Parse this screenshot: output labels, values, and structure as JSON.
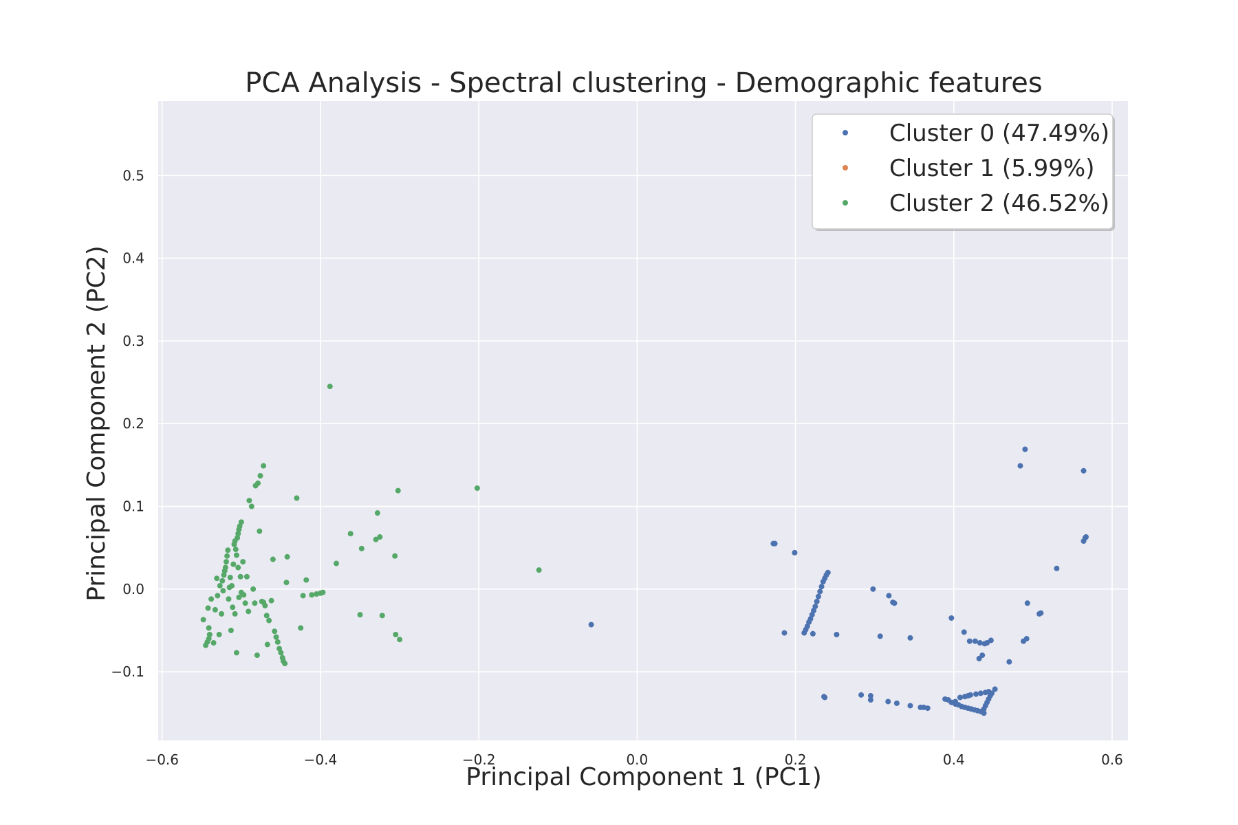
{
  "chart_data": {
    "type": "scatter",
    "title": "PCA Analysis - Spectral clustering - Demographic features",
    "xlabel": "Principal Component 1 (PC1)",
    "ylabel": "Principal Component 2 (PC2)",
    "xlim": [
      -0.605,
      0.62
    ],
    "ylim": [
      -0.183,
      0.59
    ],
    "xticks": [
      -0.6,
      -0.4,
      -0.2,
      0.0,
      0.2,
      0.4,
      0.6
    ],
    "xtick_labels": [
      "−0.6",
      "−0.4",
      "−0.2",
      "0.0",
      "0.2",
      "0.4",
      "0.6"
    ],
    "yticks": [
      -0.1,
      0.0,
      0.1,
      0.2,
      0.3,
      0.4,
      0.5
    ],
    "ytick_labels": [
      "−0.1",
      "0.0",
      "0.1",
      "0.2",
      "0.3",
      "0.4",
      "0.5"
    ],
    "grid": true,
    "legend_position": "top-right",
    "background_color": "#eaeaf2",
    "grid_color": "#ffffff",
    "series": [
      {
        "name": "Cluster 0 (47.49%)",
        "color": "#4c72b0",
        "points": [
          [
            -0.058,
            -0.043
          ],
          [
            0.172,
            0.055
          ],
          [
            0.174,
            0.055
          ],
          [
            0.199,
            0.044
          ],
          [
            0.186,
            -0.053
          ],
          [
            0.211,
            -0.053
          ],
          [
            0.213,
            -0.049
          ],
          [
            0.215,
            -0.045
          ],
          [
            0.217,
            -0.04
          ],
          [
            0.219,
            -0.036
          ],
          [
            0.221,
            -0.031
          ],
          [
            0.223,
            -0.026
          ],
          [
            0.225,
            -0.021
          ],
          [
            0.227,
            -0.015
          ],
          [
            0.229,
            -0.009
          ],
          [
            0.231,
            -0.003
          ],
          [
            0.233,
            0.003
          ],
          [
            0.235,
            0.009
          ],
          [
            0.237,
            0.013
          ],
          [
            0.239,
            0.017
          ],
          [
            0.241,
            0.02
          ],
          [
            0.222,
            -0.054
          ],
          [
            0.252,
            -0.055
          ],
          [
            0.236,
            -0.13
          ],
          [
            0.237,
            -0.131
          ],
          [
            0.283,
            -0.128
          ],
          [
            0.295,
            -0.129
          ],
          [
            0.295,
            -0.134
          ],
          [
            0.298,
            0.0
          ],
          [
            0.307,
            -0.057
          ],
          [
            0.317,
            -0.136
          ],
          [
            0.328,
            -0.138
          ],
          [
            0.318,
            -0.008
          ],
          [
            0.323,
            -0.016
          ],
          [
            0.325,
            -0.017
          ],
          [
            0.345,
            -0.059
          ],
          [
            0.345,
            -0.141
          ],
          [
            0.358,
            -0.143
          ],
          [
            0.362,
            -0.143
          ],
          [
            0.367,
            -0.144
          ],
          [
            0.389,
            -0.133
          ],
          [
            0.393,
            -0.134
          ],
          [
            0.397,
            -0.137
          ],
          [
            0.402,
            -0.136
          ],
          [
            0.408,
            -0.131
          ],
          [
            0.414,
            -0.13
          ],
          [
            0.418,
            -0.129
          ],
          [
            0.421,
            -0.128
          ],
          [
            0.428,
            -0.127
          ],
          [
            0.434,
            -0.126
          ],
          [
            0.44,
            -0.125
          ],
          [
            0.444,
            -0.124
          ],
          [
            0.402,
            -0.139
          ],
          [
            0.406,
            -0.14
          ],
          [
            0.41,
            -0.142
          ],
          [
            0.414,
            -0.143
          ],
          [
            0.418,
            -0.144
          ],
          [
            0.422,
            -0.145
          ],
          [
            0.426,
            -0.146
          ],
          [
            0.43,
            -0.147
          ],
          [
            0.434,
            -0.148
          ],
          [
            0.438,
            -0.15
          ],
          [
            0.438,
            -0.145
          ],
          [
            0.44,
            -0.141
          ],
          [
            0.442,
            -0.137
          ],
          [
            0.444,
            -0.133
          ],
          [
            0.446,
            -0.129
          ],
          [
            0.448,
            -0.126
          ],
          [
            0.452,
            -0.121
          ],
          [
            0.397,
            -0.035
          ],
          [
            0.413,
            -0.052
          ],
          [
            0.42,
            -0.063
          ],
          [
            0.427,
            -0.063
          ],
          [
            0.433,
            -0.065
          ],
          [
            0.439,
            -0.066
          ],
          [
            0.442,
            -0.065
          ],
          [
            0.447,
            -0.062
          ],
          [
            0.432,
            -0.084
          ],
          [
            0.436,
            -0.08
          ],
          [
            0.47,
            -0.088
          ],
          [
            0.488,
            -0.063
          ],
          [
            0.492,
            -0.06
          ],
          [
            0.493,
            -0.017
          ],
          [
            0.508,
            -0.03
          ],
          [
            0.51,
            -0.029
          ],
          [
            0.484,
            0.149
          ],
          [
            0.49,
            0.169
          ],
          [
            0.53,
            0.025
          ],
          [
            0.564,
            0.143
          ],
          [
            0.564,
            0.058
          ],
          [
            0.566,
            0.062
          ],
          [
            0.567,
            0.063
          ]
        ]
      },
      {
        "name": "Cluster 1 (5.99%)",
        "color": "#dd8452",
        "points": []
      },
      {
        "name": "Cluster 2 (46.52%)",
        "color": "#55a868",
        "points": [
          [
            -0.548,
            -0.037
          ],
          [
            -0.545,
            -0.068
          ],
          [
            -0.543,
            -0.064
          ],
          [
            -0.541,
            -0.06
          ],
          [
            -0.54,
            -0.055
          ],
          [
            -0.542,
            -0.023
          ],
          [
            -0.541,
            -0.047
          ],
          [
            -0.538,
            -0.012
          ],
          [
            -0.535,
            -0.065
          ],
          [
            -0.533,
            -0.025
          ],
          [
            -0.531,
            0.013
          ],
          [
            -0.53,
            -0.008
          ],
          [
            -0.528,
            -0.055
          ],
          [
            -0.527,
            0.004
          ],
          [
            -0.525,
            -0.03
          ],
          [
            -0.524,
            0.01
          ],
          [
            -0.523,
            -0.002
          ],
          [
            -0.522,
            0.017
          ],
          [
            -0.521,
            0.022
          ],
          [
            -0.52,
            0.026
          ],
          [
            -0.519,
            0.033
          ],
          [
            -0.518,
            0.04
          ],
          [
            -0.517,
            0.047
          ],
          [
            -0.516,
            -0.012
          ],
          [
            -0.515,
            0.002
          ],
          [
            -0.514,
            0.014
          ],
          [
            -0.513,
            -0.05
          ],
          [
            -0.512,
            0.004
          ],
          [
            -0.511,
            -0.022
          ],
          [
            -0.51,
            0.03
          ],
          [
            -0.509,
            0.054
          ],
          [
            -0.508,
            0.058
          ],
          [
            -0.507,
            0.048
          ],
          [
            -0.506,
            0.041
          ],
          [
            -0.505,
            0.062
          ],
          [
            -0.504,
            0.067
          ],
          [
            -0.503,
            0.072
          ],
          [
            -0.502,
            0.076
          ],
          [
            -0.5,
            0.081
          ],
          [
            -0.508,
            -0.03
          ],
          [
            -0.506,
            -0.077
          ],
          [
            -0.504,
            0.026
          ],
          [
            -0.503,
            -0.01
          ],
          [
            -0.501,
            0.015
          ],
          [
            -0.5,
            -0.004
          ],
          [
            -0.498,
            0.033
          ],
          [
            -0.497,
            -0.007
          ],
          [
            -0.495,
            -0.017
          ],
          [
            -0.493,
            0.015
          ],
          [
            -0.491,
            -0.027
          ],
          [
            -0.49,
            0.107
          ],
          [
            -0.487,
            0.1
          ],
          [
            -0.485,
            0.0
          ],
          [
            -0.483,
            -0.017
          ],
          [
            -0.482,
            0.125
          ],
          [
            -0.48,
            -0.08
          ],
          [
            -0.479,
            0.128
          ],
          [
            -0.477,
            0.07
          ],
          [
            -0.476,
            0.137
          ],
          [
            -0.474,
            -0.015
          ],
          [
            -0.472,
            0.149
          ],
          [
            -0.472,
            -0.016
          ],
          [
            -0.47,
            -0.02
          ],
          [
            -0.468,
            -0.032
          ],
          [
            -0.467,
            -0.067
          ],
          [
            -0.465,
            -0.038
          ],
          [
            -0.462,
            -0.014
          ],
          [
            -0.46,
            0.036
          ],
          [
            -0.458,
            -0.051
          ],
          [
            -0.456,
            -0.058
          ],
          [
            -0.454,
            -0.064
          ],
          [
            -0.452,
            -0.072
          ],
          [
            -0.45,
            -0.077
          ],
          [
            -0.448,
            -0.083
          ],
          [
            -0.447,
            -0.087
          ],
          [
            -0.445,
            -0.09
          ],
          [
            -0.443,
            0.008
          ],
          [
            -0.442,
            0.039
          ],
          [
            -0.43,
            0.11
          ],
          [
            -0.425,
            -0.047
          ],
          [
            -0.422,
            -0.008
          ],
          [
            -0.418,
            0.011
          ],
          [
            -0.411,
            -0.007
          ],
          [
            -0.405,
            -0.006
          ],
          [
            -0.4,
            -0.005
          ],
          [
            -0.397,
            -0.004
          ],
          [
            -0.388,
            0.245
          ],
          [
            -0.38,
            0.031
          ],
          [
            -0.362,
            0.067
          ],
          [
            -0.35,
            -0.031
          ],
          [
            -0.348,
            0.049
          ],
          [
            -0.33,
            0.06
          ],
          [
            -0.328,
            0.092
          ],
          [
            -0.325,
            0.063
          ],
          [
            -0.322,
            -0.032
          ],
          [
            -0.306,
            0.04
          ],
          [
            -0.305,
            -0.055
          ],
          [
            -0.302,
            0.119
          ],
          [
            -0.3,
            -0.061
          ],
          [
            -0.202,
            0.122
          ],
          [
            -0.124,
            0.023
          ]
        ]
      }
    ]
  }
}
